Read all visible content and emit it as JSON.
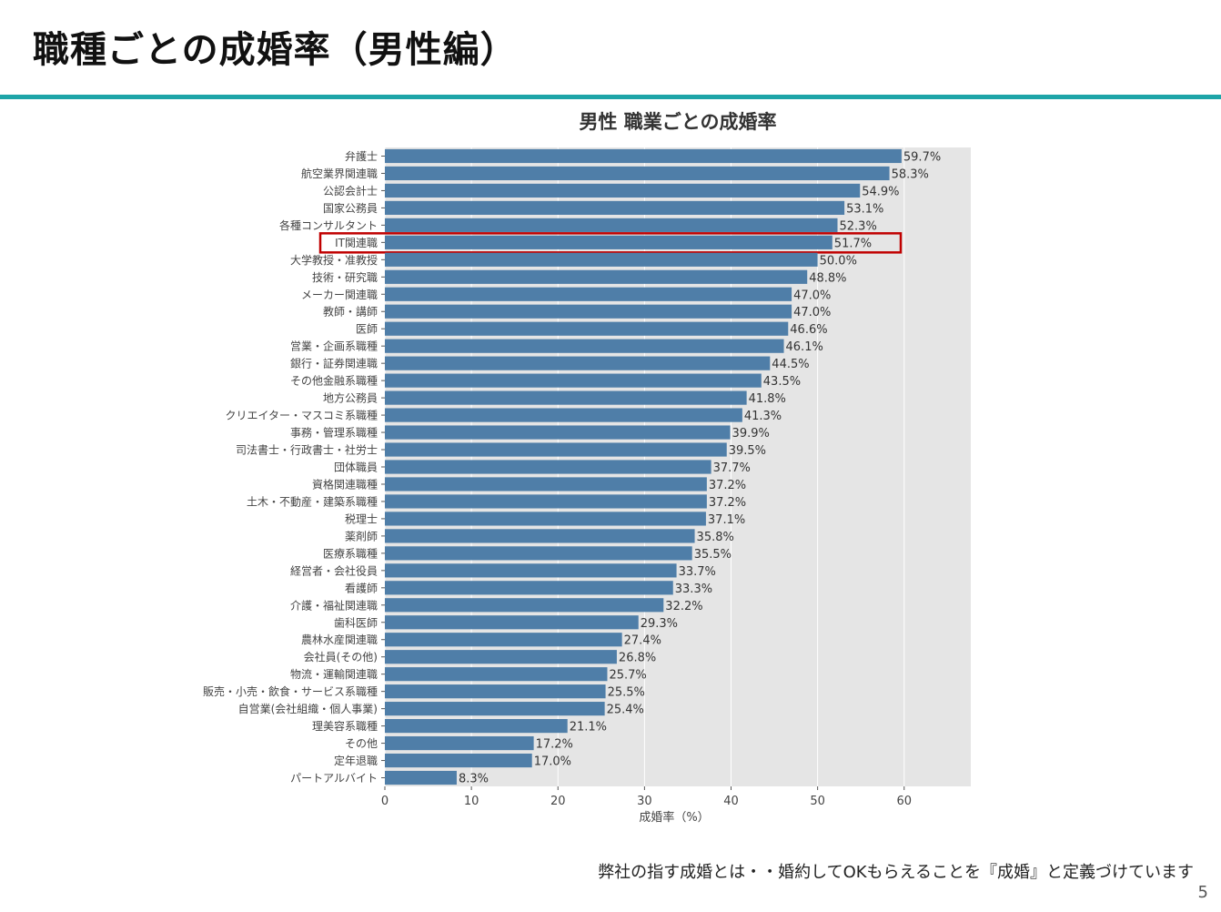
{
  "slide": {
    "title": "職種ごとの成婚率（男性編）",
    "footnote": "弊社の指す成婚とは・・婚約してOKもらえることを『成婚』と定義づけています",
    "page_number": "5",
    "accent_color": "#1ea5a8"
  },
  "chart_data": {
    "type": "bar",
    "orientation": "horizontal",
    "title": "男性 職業ごとの成婚率",
    "xlabel": "成婚率（%）",
    "ylabel": "",
    "xlim": [
      0,
      67.7
    ],
    "xticks": [
      0,
      10,
      20,
      30,
      40,
      50,
      60
    ],
    "grid": true,
    "bar_color": "#4f7ea8",
    "background_color": "#e5e5e5",
    "highlight": {
      "category": "IT関連職",
      "color": "#c00000"
    },
    "categories": [
      "弁護士",
      "航空業界関連職",
      "公認会計士",
      "国家公務員",
      "各種コンサルタント",
      "IT関連職",
      "大学教授・准教授",
      "技術・研究職",
      "メーカー関連職",
      "教師・講師",
      "医師",
      "営業・企画系職種",
      "銀行・証券関連職",
      "その他金融系職種",
      "地方公務員",
      "クリエイター・マスコミ系職種",
      "事務・管理系職種",
      "司法書士・行政書士・社労士",
      "団体職員",
      "資格関連職種",
      "土木・不動産・建築系職種",
      "税理士",
      "薬剤師",
      "医療系職種",
      "経営者・会社役員",
      "看護師",
      "介護・福祉関連職",
      "歯科医師",
      "農林水産関連職",
      "会社員(その他)",
      "物流・運輸関連職",
      "販売・小売・飲食・サービス系職種",
      "自営業(会社組織・個人事業)",
      "理美容系職種",
      "その他",
      "定年退職",
      "パートアルバイト"
    ],
    "values": [
      59.7,
      58.3,
      54.9,
      53.1,
      52.3,
      51.7,
      50.0,
      48.8,
      47.0,
      47.0,
      46.6,
      46.1,
      44.5,
      43.5,
      41.8,
      41.3,
      39.9,
      39.5,
      37.7,
      37.2,
      37.2,
      37.1,
      35.8,
      35.5,
      33.7,
      33.3,
      32.2,
      29.3,
      27.4,
      26.8,
      25.7,
      25.5,
      25.4,
      21.1,
      17.2,
      17.0,
      8.3
    ],
    "data_labels": [
      "59.7%",
      "58.3%",
      "54.9%",
      "53.1%",
      "52.3%",
      "51.7%",
      "50.0%",
      "48.8%",
      "47.0%",
      "47.0%",
      "46.6%",
      "46.1%",
      "44.5%",
      "43.5%",
      "41.8%",
      "41.3%",
      "39.9%",
      "39.5%",
      "37.7%",
      "37.2%",
      "37.2%",
      "37.1%",
      "35.8%",
      "35.5%",
      "33.7%",
      "33.3%",
      "32.2%",
      "29.3%",
      "27.4%",
      "26.8%",
      "25.7%",
      "25.5%",
      "25.4%",
      "21.1%",
      "17.2%",
      "17.0%",
      "8.3%"
    ]
  }
}
